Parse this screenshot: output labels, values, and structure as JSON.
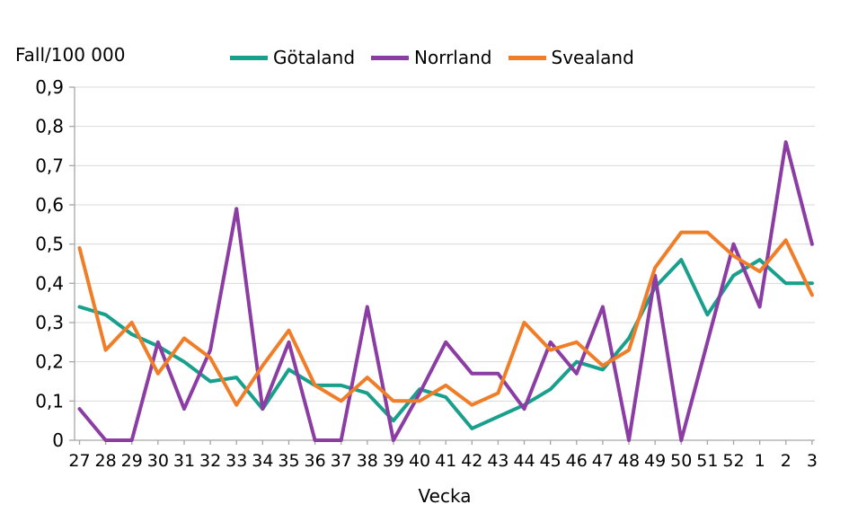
{
  "chart_title": "Fall/100 000",
  "x_axis_title": "Vecka",
  "colors": {
    "gotaland": "#18A08D",
    "norrland": "#8B3DA3",
    "svealand": "#F07E28",
    "gridline": "#D9D9D9",
    "axis": "#A6A6A6",
    "text": "#000000"
  },
  "chart_data": {
    "type": "line",
    "title": "Fall/100 000",
    "xlabel": "Vecka",
    "ylabel": "Fall/100 000",
    "ylim": [
      0,
      0.9
    ],
    "grid": true,
    "legend_position": "top-center",
    "y_tick_labels": [
      "0",
      "0,1",
      "0,2",
      "0,3",
      "0,4",
      "0,5",
      "0,6",
      "0,7",
      "0,8",
      "0,9"
    ],
    "categories": [
      "27",
      "28",
      "29",
      "30",
      "31",
      "32",
      "33",
      "34",
      "35",
      "36",
      "37",
      "38",
      "39",
      "40",
      "41",
      "42",
      "43",
      "44",
      "45",
      "46",
      "47",
      "48",
      "49",
      "50",
      "51",
      "52",
      "1",
      "2",
      "3"
    ],
    "series": [
      {
        "name": "Götaland",
        "color": "#18A08D",
        "values": [
          0.34,
          0.32,
          0.27,
          0.24,
          0.2,
          0.15,
          0.16,
          0.08,
          0.18,
          0.14,
          0.14,
          0.12,
          0.05,
          0.13,
          0.11,
          0.03,
          0.06,
          0.09,
          0.13,
          0.2,
          0.18,
          0.26,
          0.39,
          0.46,
          0.32,
          0.42,
          0.46,
          0.4,
          0.4
        ]
      },
      {
        "name": "Norrland",
        "color": "#8B3DA3",
        "values": [
          0.08,
          0,
          0,
          0.25,
          0.08,
          0.23,
          0.59,
          0.08,
          0.25,
          0,
          0,
          0.34,
          0,
          0.12,
          0.25,
          0.17,
          0.17,
          0.08,
          0.25,
          0.17,
          0.34,
          0,
          0.42,
          0,
          0.25,
          0.5,
          0.34,
          0.76,
          0.5
        ]
      },
      {
        "name": "Svealand",
        "color": "#F07E28",
        "values": [
          0.49,
          0.23,
          0.3,
          0.17,
          0.26,
          0.21,
          0.09,
          0.19,
          0.28,
          0.14,
          0.1,
          0.16,
          0.1,
          0.1,
          0.14,
          0.09,
          0.12,
          0.3,
          0.23,
          0.25,
          0.19,
          0.23,
          0.44,
          0.53,
          0.53,
          0.47,
          0.43,
          0.51,
          0.37
        ]
      }
    ]
  }
}
